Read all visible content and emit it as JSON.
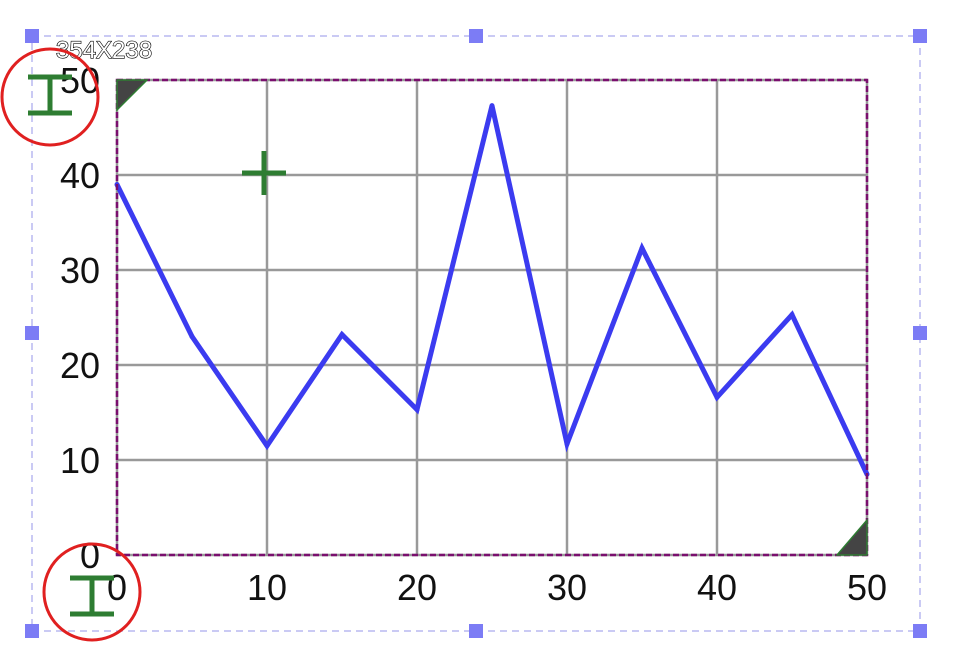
{
  "editor": {
    "size_label": "354X238",
    "selection_color": "#b9b9f0",
    "handle_color": "#7c7cf5",
    "frame_color": "#7a0f6e",
    "marker_color": "#2e7d32",
    "circle_color": "#e02020",
    "tool_icons": [
      "text-cursor-icon",
      "crosshair-icon"
    ]
  },
  "chart_data": {
    "type": "line",
    "title": "",
    "xlabel": "",
    "ylabel": "",
    "xlim": [
      0,
      50
    ],
    "ylim": [
      0,
      50
    ],
    "x_ticks": [
      "0",
      "10",
      "20",
      "30",
      "40",
      "50"
    ],
    "y_ticks": [
      "0",
      "10",
      "20",
      "30",
      "40",
      "50"
    ],
    "grid": true,
    "legend": "none",
    "series": [
      {
        "color": "#3b3bf0",
        "x": [
          0,
          5,
          10,
          15,
          20,
          25,
          30,
          35,
          40,
          45,
          50
        ],
        "y": [
          39,
          23,
          11.5,
          23.2,
          15.3,
          47.3,
          11.7,
          32.3,
          16.6,
          25.3,
          8.5
        ]
      }
    ]
  }
}
